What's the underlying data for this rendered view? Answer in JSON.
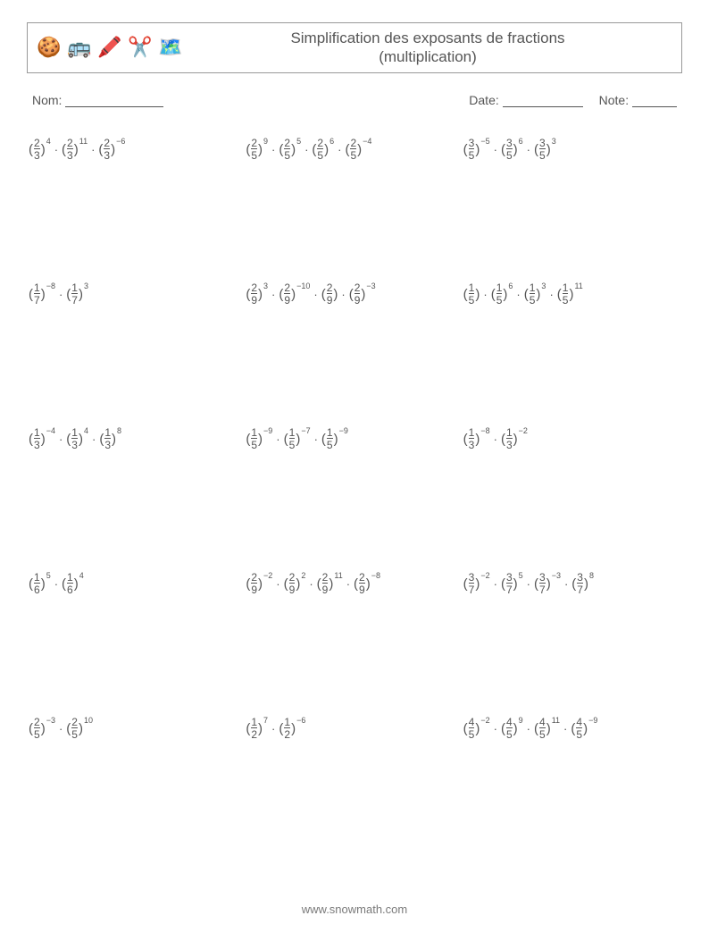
{
  "header": {
    "icons": [
      "🍪",
      "🚌",
      "🖍️",
      "✂️",
      "🗺️"
    ],
    "title_line1": "Simplification des exposants de fractions",
    "title_line2": "(multiplication)"
  },
  "info": {
    "name_label": "Nom:",
    "date_label": "Date:",
    "grade_label": "Note:",
    "name_blank_width": 110,
    "date_blank_width": 90,
    "grade_blank_width": 50
  },
  "dot": "·",
  "problems": [
    [
      [
        {
          "n": "2",
          "d": "3",
          "e": "4"
        },
        {
          "n": "2",
          "d": "3",
          "e": "11"
        },
        {
          "n": "2",
          "d": "3",
          "e": "-6"
        }
      ],
      [
        {
          "n": "2",
          "d": "5",
          "e": "9"
        },
        {
          "n": "2",
          "d": "5",
          "e": "5"
        },
        {
          "n": "2",
          "d": "5",
          "e": "6"
        },
        {
          "n": "2",
          "d": "5",
          "e": "-4"
        }
      ],
      [
        {
          "n": "3",
          "d": "5",
          "e": "-5"
        },
        {
          "n": "3",
          "d": "5",
          "e": "6"
        },
        {
          "n": "3",
          "d": "5",
          "e": "3"
        }
      ]
    ],
    [
      [
        {
          "n": "1",
          "d": "7",
          "e": "-8"
        },
        {
          "n": "1",
          "d": "7",
          "e": "3"
        }
      ],
      [
        {
          "n": "2",
          "d": "9",
          "e": "3"
        },
        {
          "n": "2",
          "d": "9",
          "e": "-10"
        },
        {
          "n": "2",
          "d": "9",
          "e": ""
        },
        {
          "n": "2",
          "d": "9",
          "e": "-3"
        }
      ],
      [
        {
          "n": "1",
          "d": "5",
          "e": ""
        },
        {
          "n": "1",
          "d": "5",
          "e": "6"
        },
        {
          "n": "1",
          "d": "5",
          "e": "3"
        },
        {
          "n": "1",
          "d": "5",
          "e": "11"
        }
      ]
    ],
    [
      [
        {
          "n": "1",
          "d": "3",
          "e": "-4"
        },
        {
          "n": "1",
          "d": "3",
          "e": "4"
        },
        {
          "n": "1",
          "d": "3",
          "e": "8"
        }
      ],
      [
        {
          "n": "1",
          "d": "5",
          "e": "-9"
        },
        {
          "n": "1",
          "d": "5",
          "e": "-7"
        },
        {
          "n": "1",
          "d": "5",
          "e": "-9"
        }
      ],
      [
        {
          "n": "1",
          "d": "3",
          "e": "-8"
        },
        {
          "n": "1",
          "d": "3",
          "e": "-2"
        }
      ]
    ],
    [
      [
        {
          "n": "1",
          "d": "6",
          "e": "5"
        },
        {
          "n": "1",
          "d": "6",
          "e": "4"
        }
      ],
      [
        {
          "n": "2",
          "d": "9",
          "e": "-2"
        },
        {
          "n": "2",
          "d": "9",
          "e": "2"
        },
        {
          "n": "2",
          "d": "9",
          "e": "11"
        },
        {
          "n": "2",
          "d": "9",
          "e": "-8"
        }
      ],
      [
        {
          "n": "3",
          "d": "7",
          "e": "-2"
        },
        {
          "n": "3",
          "d": "7",
          "e": "5"
        },
        {
          "n": "3",
          "d": "7",
          "e": "-3"
        },
        {
          "n": "3",
          "d": "7",
          "e": "8"
        }
      ]
    ],
    [
      [
        {
          "n": "2",
          "d": "5",
          "e": "-3"
        },
        {
          "n": "2",
          "d": "5",
          "e": "10"
        }
      ],
      [
        {
          "n": "1",
          "d": "2",
          "e": "7"
        },
        {
          "n": "1",
          "d": "2",
          "e": "-6"
        }
      ],
      [
        {
          "n": "4",
          "d": "5",
          "e": "-2"
        },
        {
          "n": "4",
          "d": "5",
          "e": "9"
        },
        {
          "n": "4",
          "d": "5",
          "e": "11"
        },
        {
          "n": "4",
          "d": "5",
          "e": "-9"
        }
      ]
    ]
  ],
  "footer": "www.snowmath.com"
}
